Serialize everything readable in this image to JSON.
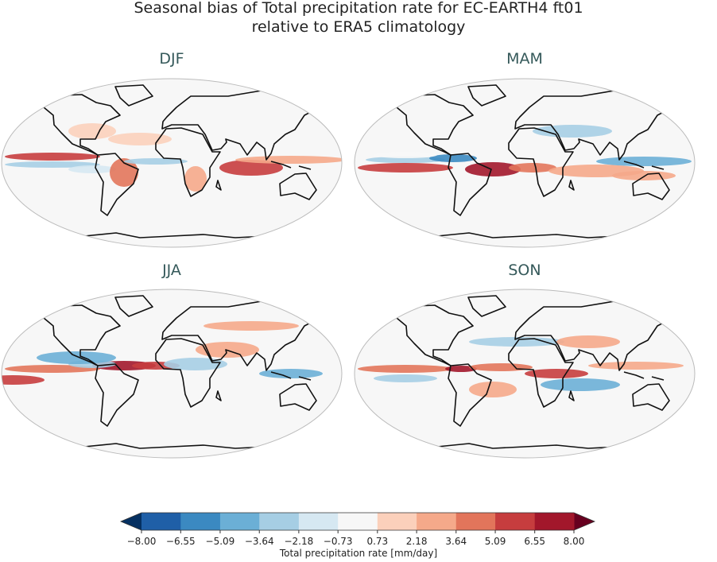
{
  "chart_data": {
    "type": "contour-map",
    "title": "Seasonal bias of Total precipitation rate for EC-EARTH4 ft01",
    "subtitle": "relative to ERA5 climatology",
    "panels": [
      "DJF",
      "MAM",
      "JJA",
      "SON"
    ],
    "colorbar": {
      "label": "Total precipitation rate [mm/day]",
      "ticks": [
        {
          "value": -8,
          "label": "−8.00"
        },
        {
          "value": -6.55,
          "label": "−6.55"
        },
        {
          "value": -5.09,
          "label": "−5.09"
        },
        {
          "value": -3.64,
          "label": "−3.64"
        },
        {
          "value": -2.18,
          "label": "−2.18"
        },
        {
          "value": -0.73,
          "label": "−0.73"
        },
        {
          "value": 0.73,
          "label": "0.73"
        },
        {
          "value": 2.18,
          "label": "2.18"
        },
        {
          "value": 3.64,
          "label": "3.64"
        },
        {
          "value": 5.09,
          "label": "5.09"
        },
        {
          "value": 6.55,
          "label": "6.55"
        },
        {
          "value": 8,
          "label": "8.00"
        }
      ],
      "colors": [
        "#1f5fa7",
        "#3b89c1",
        "#6bafd6",
        "#a6cee4",
        "#d6e8f2",
        "#f7f7f7",
        "#fbd0bb",
        "#f5a98a",
        "#e2755b",
        "#c63d3e",
        "#a2172b"
      ],
      "extend_colors": [
        "#053061",
        "#67001f"
      ]
    }
  }
}
